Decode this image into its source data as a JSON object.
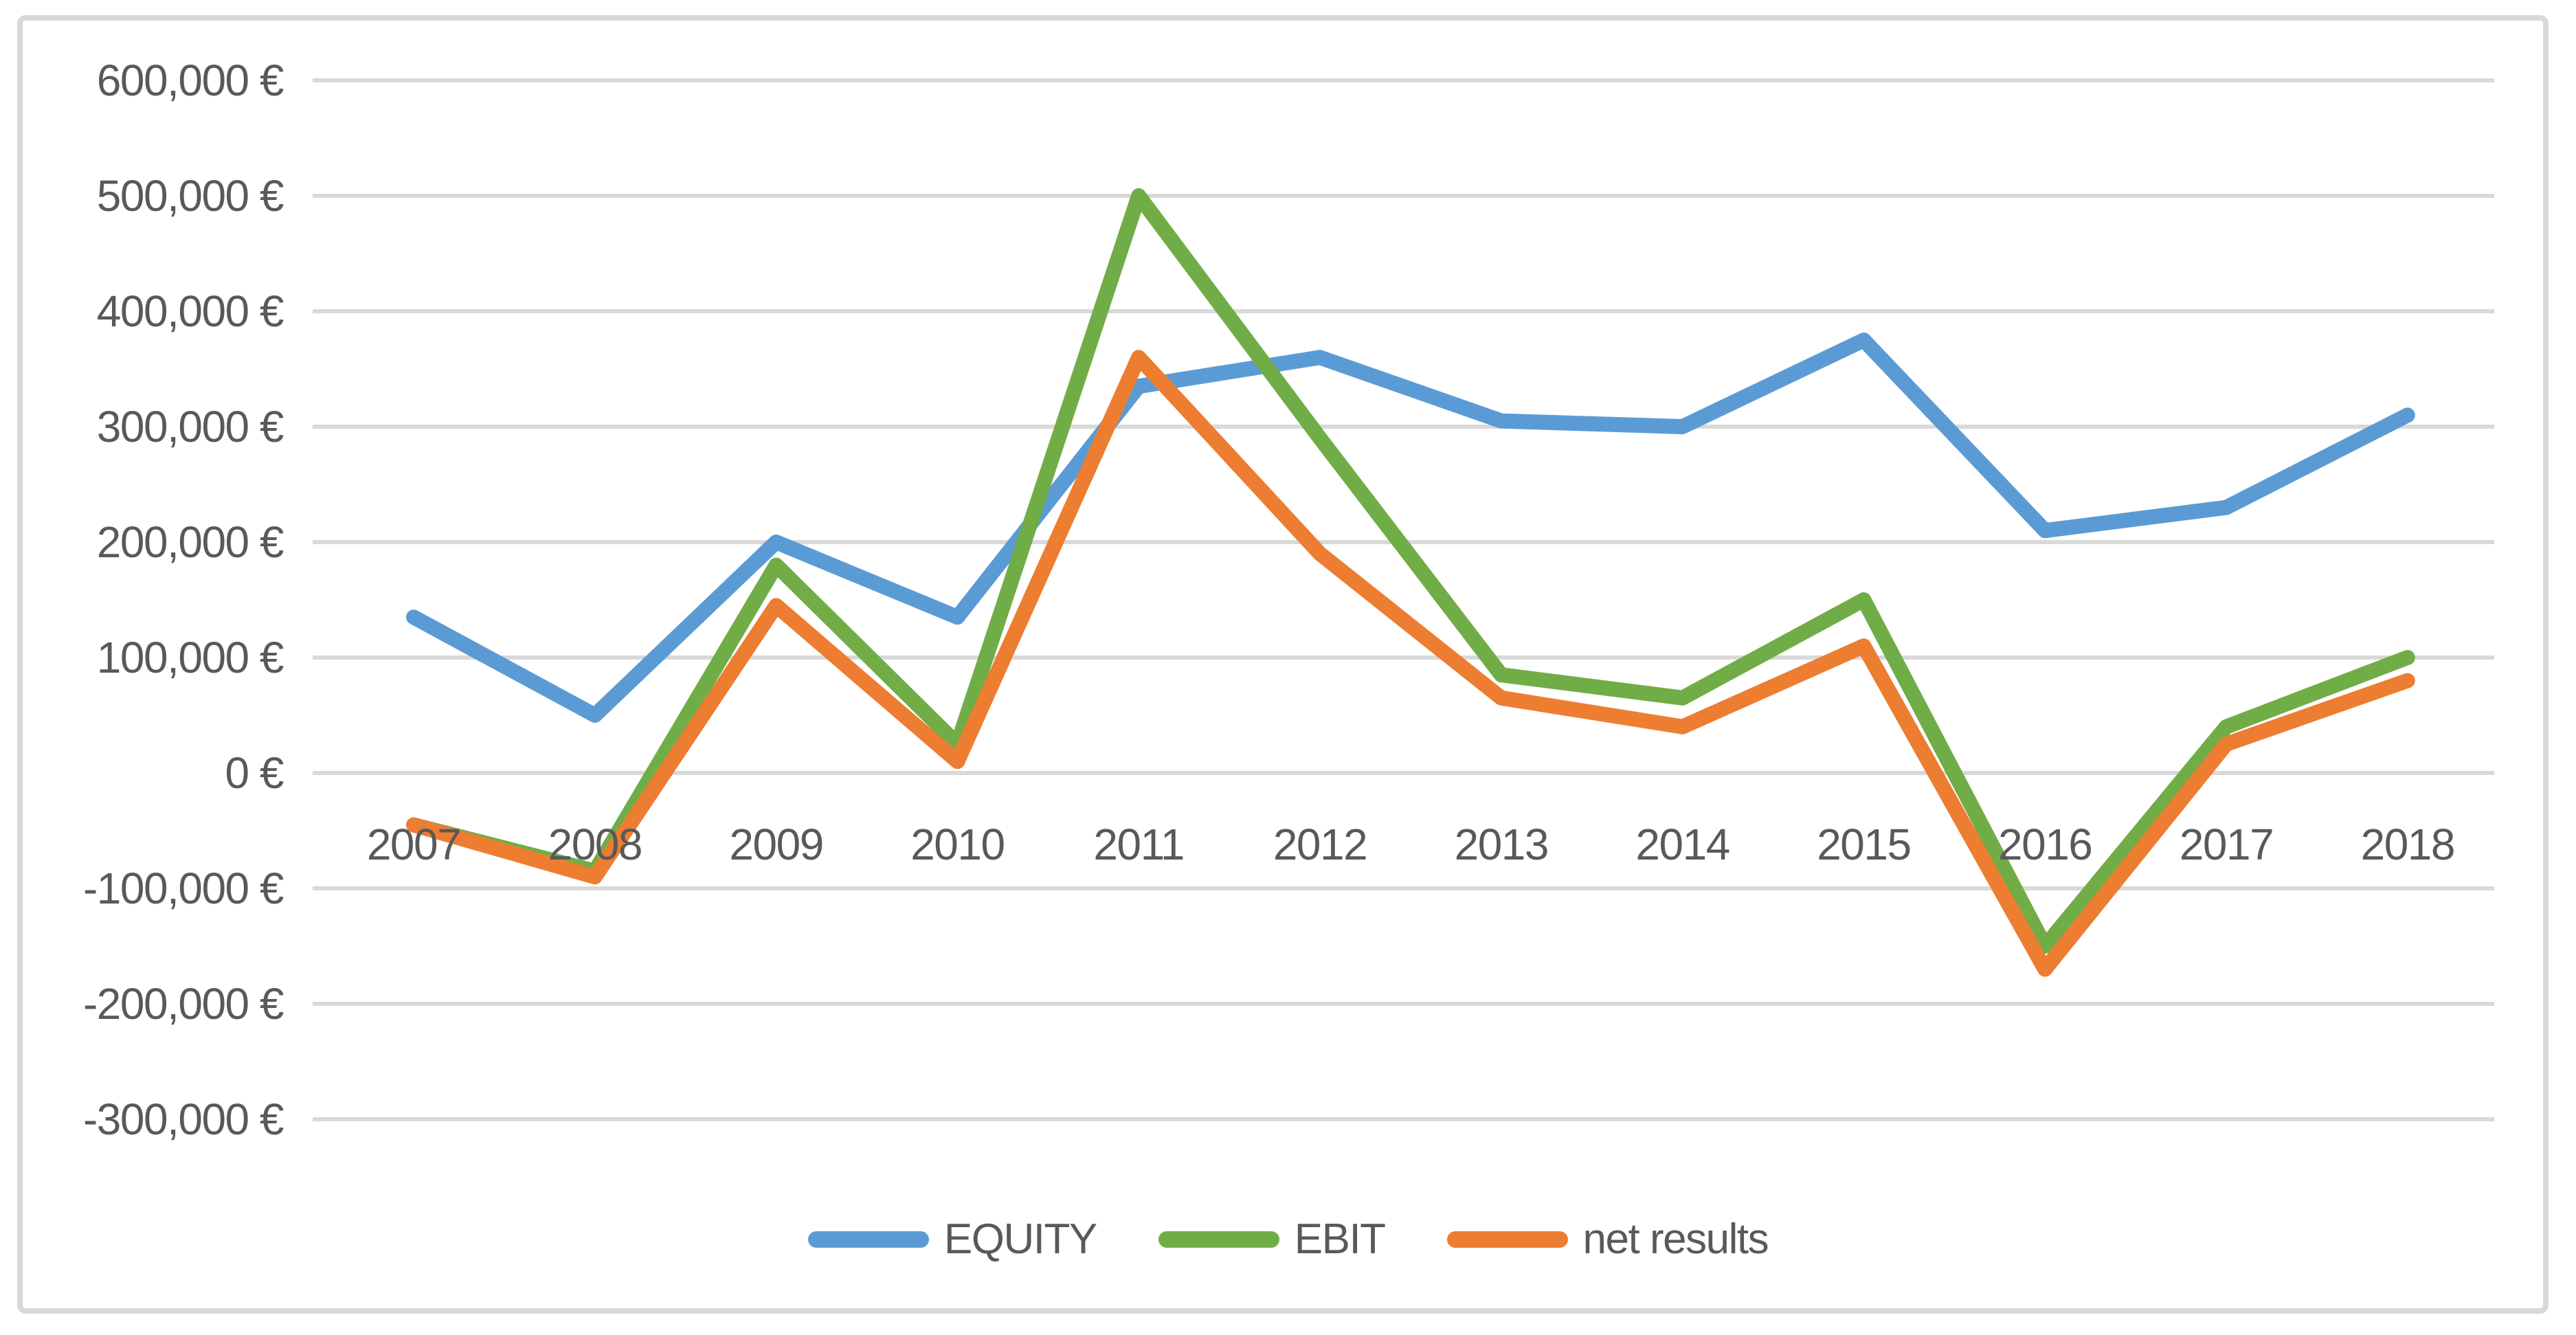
{
  "colors": {
    "equity": "#5B9BD5",
    "ebit": "#70AD47",
    "net_results": "#ED7D31",
    "gridline": "#D9D9D9",
    "frame_border": "#D9D9D9",
    "text": "#595959"
  },
  "chart_data": {
    "type": "line",
    "title": "",
    "xlabel": "",
    "ylabel": "",
    "categories": [
      "2007",
      "2008",
      "2009",
      "2010",
      "2011",
      "2012",
      "2013",
      "2014",
      "2015",
      "2016",
      "2017",
      "2018"
    ],
    "series": [
      {
        "name": "EQUITY",
        "color": "#5B9BD5",
        "values": [
          135000,
          50000,
          200000,
          135000,
          335000,
          360000,
          305000,
          300000,
          375000,
          210000,
          230000,
          310000
        ]
      },
      {
        "name": "EBIT",
        "color": "#70AD47",
        "values": [
          -45000,
          -85000,
          180000,
          25000,
          500000,
          290000,
          85000,
          65000,
          150000,
          -150000,
          40000,
          100000
        ]
      },
      {
        "name": "net results",
        "color": "#ED7D31",
        "values": [
          -45000,
          -90000,
          145000,
          10000,
          360000,
          190000,
          65000,
          40000,
          110000,
          -170000,
          25000,
          80000
        ]
      }
    ],
    "y_ticks": [
      {
        "label": "600,000 €",
        "value": 600000
      },
      {
        "label": "500,000 €",
        "value": 500000
      },
      {
        "label": "400,000 €",
        "value": 400000
      },
      {
        "label": "300,000 €",
        "value": 300000
      },
      {
        "label": "200,000 €",
        "value": 200000
      },
      {
        "label": "100,000 €",
        "value": 100000
      },
      {
        "label": "0 €",
        "value": 0
      },
      {
        "label": "-100,000 €",
        "value": -100000
      },
      {
        "label": "-200,000 €",
        "value": -200000
      },
      {
        "label": "-300,000 €",
        "value": -300000
      }
    ],
    "ylim": [
      -300000,
      600000
    ],
    "grid": true,
    "legend_position": "bottom",
    "legend_entries": [
      "EQUITY",
      "EBIT",
      "net results"
    ]
  }
}
